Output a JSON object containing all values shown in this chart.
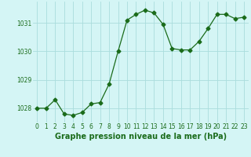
{
  "x": [
    0,
    1,
    2,
    3,
    4,
    5,
    6,
    7,
    8,
    9,
    10,
    11,
    12,
    13,
    14,
    15,
    16,
    17,
    18,
    19,
    20,
    21,
    22,
    23
  ],
  "y": [
    1028.0,
    1028.0,
    1028.3,
    1027.8,
    1027.75,
    1027.85,
    1028.15,
    1028.2,
    1028.85,
    1030.0,
    1031.1,
    1031.3,
    1031.45,
    1031.35,
    1030.95,
    1030.1,
    1030.05,
    1030.05,
    1030.35,
    1030.8,
    1031.3,
    1031.3,
    1031.15,
    1031.2
  ],
  "line_color": "#1a6b1a",
  "marker": "D",
  "marker_size": 2.5,
  "bg_color": "#d4f5f5",
  "grid_color": "#aadddd",
  "xlabel": "Graphe pression niveau de la mer (hPa)",
  "xlabel_fontsize": 7,
  "xlabel_color": "#1a6b1a",
  "yticks": [
    1028,
    1029,
    1030,
    1031
  ],
  "xticks": [
    0,
    1,
    2,
    3,
    4,
    5,
    6,
    7,
    8,
    9,
    10,
    11,
    12,
    13,
    14,
    15,
    16,
    17,
    18,
    19,
    20,
    21,
    22,
    23
  ],
  "ylim": [
    1027.5,
    1031.75
  ],
  "xlim": [
    -0.5,
    23.5
  ],
  "tick_fontsize": 5.5,
  "tick_color": "#1a6b1a"
}
